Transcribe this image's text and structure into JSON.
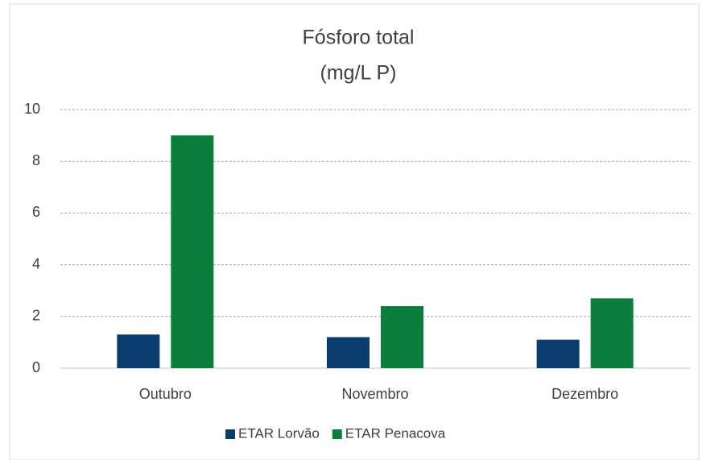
{
  "chart_data": {
    "type": "bar",
    "title": "Fósforo total",
    "subtitle": "(mg/L P)",
    "categories": [
      "Outubro",
      "Novembro",
      "Dezembro"
    ],
    "series": [
      {
        "name": "ETAR Lorvão",
        "color": "#0b3c6e",
        "values": [
          1.3,
          1.2,
          1.1
        ]
      },
      {
        "name": "ETAR Penacova",
        "color": "#0a7e3a",
        "values": [
          9.0,
          2.4,
          2.7
        ]
      }
    ],
    "ylim": [
      0,
      10
    ],
    "yticks": [
      0,
      2,
      4,
      6,
      8,
      10
    ],
    "grid": true,
    "legend": "bottom"
  }
}
